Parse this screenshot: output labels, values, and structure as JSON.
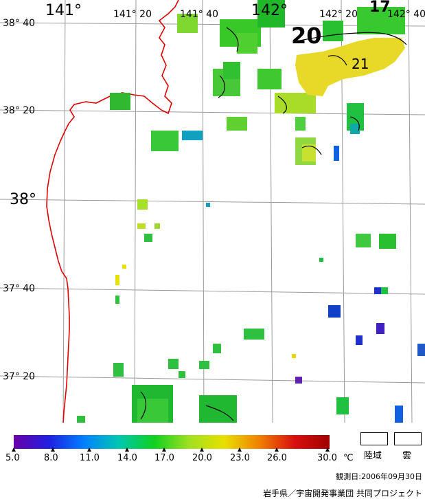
{
  "map": {
    "lon_labels": [
      "141°",
      "141° 20",
      "141° 40",
      "142°",
      "142° 20",
      "142° 40"
    ],
    "lat_labels": [
      "38° 40",
      "38° 20",
      "38°",
      "37° 40",
      "37° 20"
    ],
    "contour_labels": [
      "20",
      "21",
      "17"
    ]
  },
  "legend": {
    "ticks": [
      "5.0",
      "8.0",
      "11.0",
      "14.0",
      "17.0",
      "20.0",
      "23.0",
      "26.0",
      "30.0"
    ],
    "unit": "℃",
    "colorscale": [
      "#6a00a8",
      "#2020e0",
      "#0080ff",
      "#00c8b0",
      "#10d020",
      "#a0e020",
      "#e8e000",
      "#f08000",
      "#d81010",
      "#a00000"
    ],
    "land_label": "陸域",
    "cloud_label": "雲"
  },
  "footer": {
    "observation_date": "観測日:2006年09月30日",
    "credit": "岩手県／宇宙開発事業団 共同プロジェクト"
  }
}
